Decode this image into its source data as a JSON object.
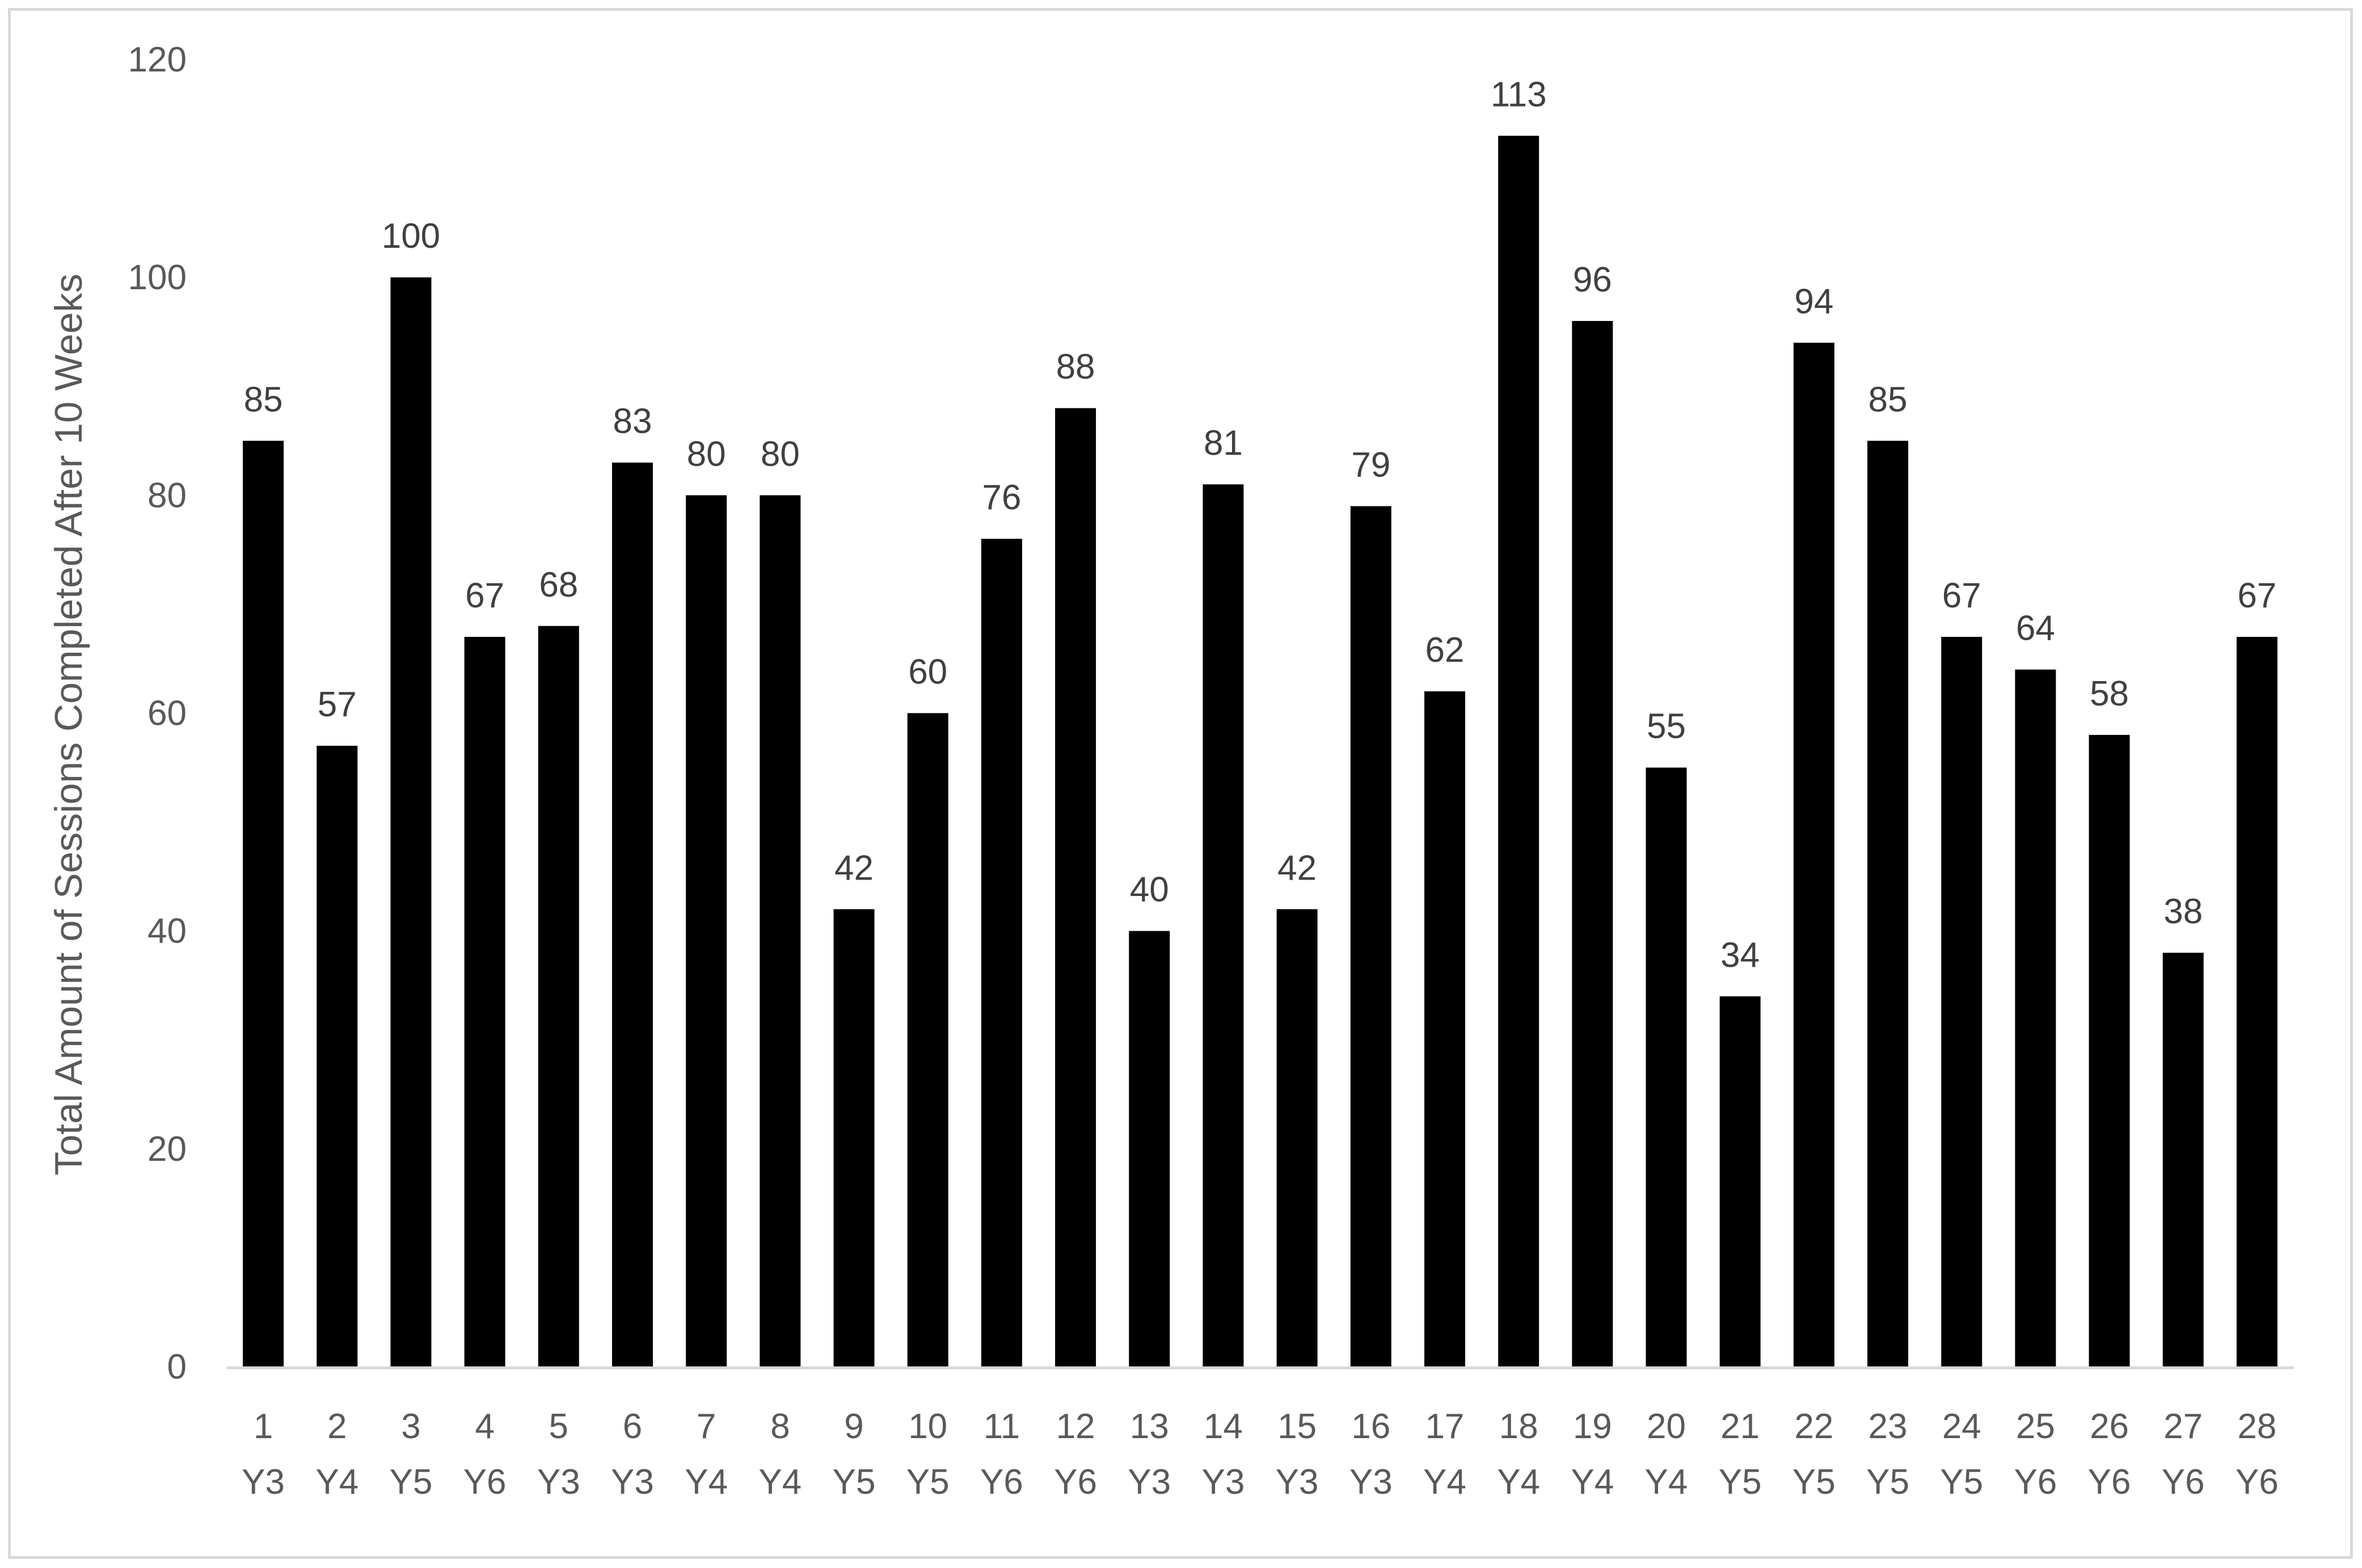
{
  "chart_data": {
    "type": "bar",
    "title": "",
    "xlabel": "",
    "ylabel": "Total Amount of Sessions Completed After 10 Weeks",
    "ylim": [
      0,
      120
    ],
    "yticks": [
      0,
      20,
      40,
      60,
      80,
      100,
      120
    ],
    "grid": false,
    "legend": "none",
    "bar_color": "#000000",
    "categories": [
      {
        "id": "1",
        "group": "Y3"
      },
      {
        "id": "2",
        "group": "Y4"
      },
      {
        "id": "3",
        "group": "Y5"
      },
      {
        "id": "4",
        "group": "Y6"
      },
      {
        "id": "5",
        "group": "Y3"
      },
      {
        "id": "6",
        "group": "Y3"
      },
      {
        "id": "7",
        "group": "Y4"
      },
      {
        "id": "8",
        "group": "Y4"
      },
      {
        "id": "9",
        "group": "Y5"
      },
      {
        "id": "10",
        "group": "Y5"
      },
      {
        "id": "11",
        "group": "Y6"
      },
      {
        "id": "12",
        "group": "Y6"
      },
      {
        "id": "13",
        "group": "Y3"
      },
      {
        "id": "14",
        "group": "Y3"
      },
      {
        "id": "15",
        "group": "Y3"
      },
      {
        "id": "16",
        "group": "Y3"
      },
      {
        "id": "17",
        "group": "Y4"
      },
      {
        "id": "18",
        "group": "Y4"
      },
      {
        "id": "19",
        "group": "Y4"
      },
      {
        "id": "20",
        "group": "Y4"
      },
      {
        "id": "21",
        "group": "Y5"
      },
      {
        "id": "22",
        "group": "Y5"
      },
      {
        "id": "23",
        "group": "Y5"
      },
      {
        "id": "24",
        "group": "Y5"
      },
      {
        "id": "25",
        "group": "Y6"
      },
      {
        "id": "26",
        "group": "Y6"
      },
      {
        "id": "27",
        "group": "Y6"
      },
      {
        "id": "28",
        "group": "Y6"
      }
    ],
    "values": [
      85,
      57,
      100,
      67,
      68,
      83,
      80,
      80,
      42,
      60,
      76,
      88,
      40,
      81,
      42,
      79,
      62,
      113,
      96,
      55,
      34,
      94,
      85,
      67,
      64,
      58,
      38,
      67
    ]
  }
}
